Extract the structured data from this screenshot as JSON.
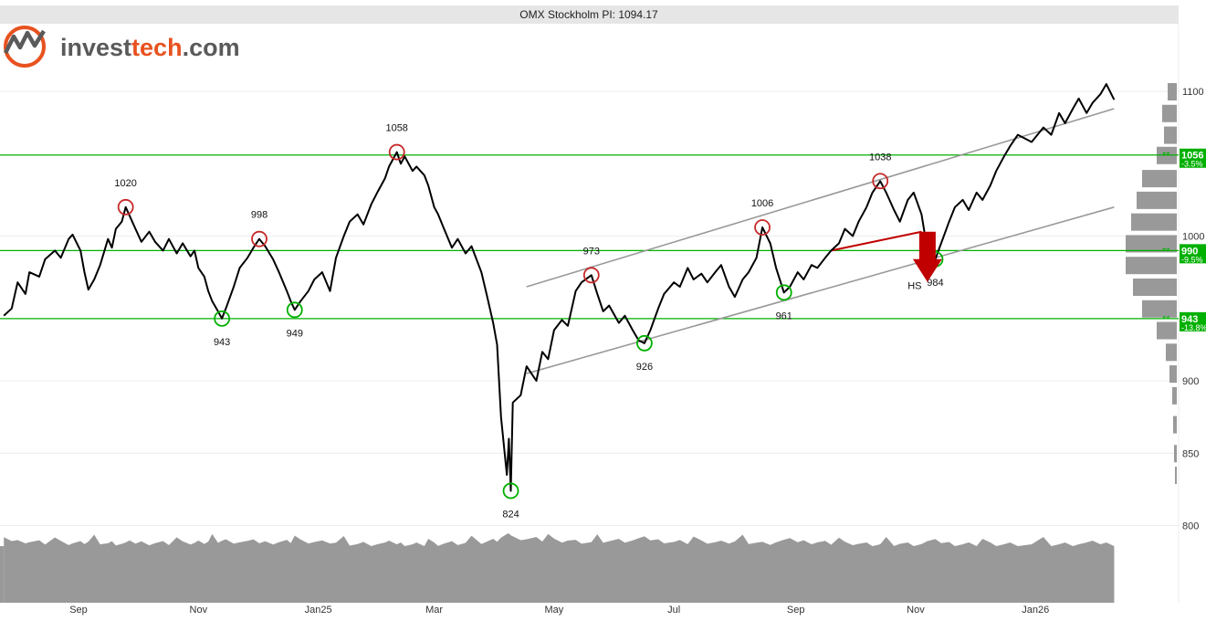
{
  "logo": {
    "part1": "invest",
    "part2": "tech",
    "part3": ".com",
    "colors": {
      "invest": "#5a5a5a",
      "tech": "#e8521f"
    }
  },
  "colors": {
    "price": "#000000",
    "support": "#00b000",
    "resistance_marker": "#c62828",
    "trend_channel": "#999999",
    "volume": "#999999",
    "signal_arrow": "#c00000",
    "level_badge": "#00b000"
  },
  "chart_data": {
    "type": "line",
    "title": "OMX Stockholm PI: 1094.17",
    "y_axis": {
      "min": 762,
      "max": 1146,
      "ticks": [
        800,
        850,
        900,
        1000,
        1100
      ],
      "side": "right"
    },
    "x_axis": {
      "ticks": [
        "Sep",
        "Nov",
        "Jan25",
        "Mar",
        "May",
        "Jul",
        "Sep",
        "Nov",
        "Jan26"
      ],
      "tick_dates": [
        "2024-09-01",
        "2024-11-01",
        "2025-01-01",
        "2025-03-01",
        "2025-05-01",
        "2025-07-01",
        "2025-09-01",
        "2025-11-01",
        "2026-01-01"
      ]
    },
    "series": [
      {
        "points": [
          [
            "2024-07-25",
            945
          ],
          [
            "2024-07-29",
            950
          ],
          [
            "2024-08-01",
            968
          ],
          [
            "2024-08-05",
            960
          ],
          [
            "2024-08-07",
            975
          ],
          [
            "2024-08-12",
            972
          ],
          [
            "2024-08-15",
            984
          ],
          [
            "2024-08-20",
            990
          ],
          [
            "2024-08-23",
            985
          ],
          [
            "2024-08-27",
            998
          ],
          [
            "2024-08-29",
            1001
          ],
          [
            "2024-09-02",
            990
          ],
          [
            "2024-09-04",
            975
          ],
          [
            "2024-09-06",
            963
          ],
          [
            "2024-09-09",
            970
          ],
          [
            "2024-09-12",
            980
          ],
          [
            "2024-09-16",
            998
          ],
          [
            "2024-09-18",
            992
          ],
          [
            "2024-09-20",
            1005
          ],
          [
            "2024-09-23",
            1010
          ],
          [
            "2024-09-25",
            1020
          ],
          [
            "2024-09-27",
            1014
          ],
          [
            "2024-09-30",
            1005
          ],
          [
            "2024-10-03",
            996
          ],
          [
            "2024-10-07",
            1003
          ],
          [
            "2024-10-10",
            996
          ],
          [
            "2024-10-14",
            990
          ],
          [
            "2024-10-17",
            998
          ],
          [
            "2024-10-21",
            988
          ],
          [
            "2024-10-24",
            995
          ],
          [
            "2024-10-28",
            986
          ],
          [
            "2024-10-30",
            990
          ],
          [
            "2024-11-01",
            978
          ],
          [
            "2024-11-04",
            972
          ],
          [
            "2024-11-06",
            962
          ],
          [
            "2024-11-08",
            955
          ],
          [
            "2024-11-11",
            948
          ],
          [
            "2024-11-13",
            943
          ],
          [
            "2024-11-15",
            950
          ],
          [
            "2024-11-19",
            965
          ],
          [
            "2024-11-22",
            978
          ],
          [
            "2024-11-26",
            985
          ],
          [
            "2024-11-29",
            992
          ],
          [
            "2024-12-02",
            998
          ],
          [
            "2024-12-05",
            993
          ],
          [
            "2024-12-09",
            984
          ],
          [
            "2024-12-12",
            975
          ],
          [
            "2024-12-16",
            962
          ],
          [
            "2024-12-18",
            955
          ],
          [
            "2024-12-20",
            949
          ],
          [
            "2024-12-23",
            955
          ],
          [
            "2024-12-27",
            962
          ],
          [
            "2024-12-30",
            970
          ],
          [
            "2025-01-03",
            975
          ],
          [
            "2025-01-07",
            962
          ],
          [
            "2025-01-10",
            985
          ],
          [
            "2025-01-14",
            1000
          ],
          [
            "2025-01-17",
            1010
          ],
          [
            "2025-01-21",
            1015
          ],
          [
            "2025-01-24",
            1008
          ],
          [
            "2025-01-28",
            1022
          ],
          [
            "2025-01-31",
            1030
          ],
          [
            "2025-02-04",
            1040
          ],
          [
            "2025-02-06",
            1048
          ],
          [
            "2025-02-10",
            1058
          ],
          [
            "2025-02-12",
            1050
          ],
          [
            "2025-02-14",
            1055
          ],
          [
            "2025-02-18",
            1045
          ],
          [
            "2025-02-20",
            1048
          ],
          [
            "2025-02-24",
            1042
          ],
          [
            "2025-02-26",
            1035
          ],
          [
            "2025-03-01",
            1020
          ],
          [
            "2025-03-03",
            1015
          ],
          [
            "2025-03-06",
            1005
          ],
          [
            "2025-03-10",
            992
          ],
          [
            "2025-03-13",
            998
          ],
          [
            "2025-03-17",
            988
          ],
          [
            "2025-03-20",
            993
          ],
          [
            "2025-03-25",
            975
          ],
          [
            "2025-03-28",
            958
          ],
          [
            "2025-03-31",
            940
          ],
          [
            "2025-04-02",
            925
          ],
          [
            "2025-04-04",
            875
          ],
          [
            "2025-04-07",
            835
          ],
          [
            "2025-04-08",
            860
          ],
          [
            "2025-04-09",
            824
          ],
          [
            "2025-04-10",
            885
          ],
          [
            "2025-04-14",
            890
          ],
          [
            "2025-04-17",
            910
          ],
          [
            "2025-04-22",
            900
          ],
          [
            "2025-04-25",
            920
          ],
          [
            "2025-04-28",
            915
          ],
          [
            "2025-05-01",
            935
          ],
          [
            "2025-05-05",
            942
          ],
          [
            "2025-05-08",
            938
          ],
          [
            "2025-05-12",
            962
          ],
          [
            "2025-05-15",
            968
          ],
          [
            "2025-05-20",
            973
          ],
          [
            "2025-05-23",
            960
          ],
          [
            "2025-05-26",
            948
          ],
          [
            "2025-05-29",
            952
          ],
          [
            "2025-06-03",
            940
          ],
          [
            "2025-06-06",
            945
          ],
          [
            "2025-06-10",
            935
          ],
          [
            "2025-06-13",
            928
          ],
          [
            "2025-06-16",
            926
          ],
          [
            "2025-06-19",
            935
          ],
          [
            "2025-06-23",
            950
          ],
          [
            "2025-06-26",
            960
          ],
          [
            "2025-07-01",
            968
          ],
          [
            "2025-07-04",
            965
          ],
          [
            "2025-07-08",
            978
          ],
          [
            "2025-07-11",
            970
          ],
          [
            "2025-07-15",
            974
          ],
          [
            "2025-07-18",
            968
          ],
          [
            "2025-07-22",
            975
          ],
          [
            "2025-07-25",
            980
          ],
          [
            "2025-07-29",
            965
          ],
          [
            "2025-08-01",
            958
          ],
          [
            "2025-08-05",
            970
          ],
          [
            "2025-08-08",
            975
          ],
          [
            "2025-08-12",
            985
          ],
          [
            "2025-08-15",
            1006
          ],
          [
            "2025-08-19",
            995
          ],
          [
            "2025-08-22",
            978
          ],
          [
            "2025-08-26",
            961
          ],
          [
            "2025-08-29",
            965
          ],
          [
            "2025-09-02",
            975
          ],
          [
            "2025-09-05",
            970
          ],
          [
            "2025-09-09",
            980
          ],
          [
            "2025-09-12",
            978
          ],
          [
            "2025-09-16",
            985
          ],
          [
            "2025-09-19",
            990
          ],
          [
            "2025-09-23",
            995
          ],
          [
            "2025-09-26",
            1005
          ],
          [
            "2025-09-30",
            1000
          ],
          [
            "2025-10-03",
            1010
          ],
          [
            "2025-10-07",
            1020
          ],
          [
            "2025-10-10",
            1030
          ],
          [
            "2025-10-14",
            1038
          ],
          [
            "2025-10-17",
            1030
          ],
          [
            "2025-10-21",
            1018
          ],
          [
            "2025-10-24",
            1010
          ],
          [
            "2025-10-28",
            1025
          ],
          [
            "2025-10-31",
            1030
          ],
          [
            "2025-11-04",
            1015
          ],
          [
            "2025-11-07",
            990
          ],
          [
            "2025-11-11",
            984
          ],
          [
            "2025-11-14",
            995
          ],
          [
            "2025-11-18",
            1010
          ],
          [
            "2025-11-21",
            1020
          ],
          [
            "2025-11-25",
            1025
          ],
          [
            "2025-11-28",
            1018
          ],
          [
            "2025-12-02",
            1030
          ],
          [
            "2025-12-05",
            1025
          ],
          [
            "2025-12-09",
            1035
          ],
          [
            "2025-12-12",
            1045
          ],
          [
            "2025-12-16",
            1055
          ],
          [
            "2025-12-19",
            1062
          ],
          [
            "2025-12-23",
            1070
          ],
          [
            "2025-12-30",
            1065
          ],
          [
            "2026-01-05",
            1075
          ],
          [
            "2026-01-09",
            1070
          ],
          [
            "2026-01-13",
            1085
          ],
          [
            "2026-01-16",
            1078
          ],
          [
            "2026-01-20",
            1088
          ],
          [
            "2026-01-23",
            1095
          ],
          [
            "2026-01-27",
            1085
          ],
          [
            "2026-01-30",
            1092
          ],
          [
            "2026-02-03",
            1098
          ],
          [
            "2026-02-06",
            1105
          ],
          [
            "2026-02-10",
            1094.17
          ]
        ]
      }
    ],
    "annotations": {
      "peaks": [
        {
          "date": "2024-09-25",
          "value": 1020,
          "label": "1020"
        },
        {
          "date": "2024-12-02",
          "value": 998,
          "label": "998"
        },
        {
          "date": "2025-02-10",
          "value": 1058,
          "label": "1058"
        },
        {
          "date": "2025-05-20",
          "value": 973,
          "label": "973"
        },
        {
          "date": "2025-08-15",
          "value": 1006,
          "label": "1006"
        },
        {
          "date": "2025-10-14",
          "value": 1038,
          "label": "1038"
        }
      ],
      "troughs": [
        {
          "date": "2024-11-13",
          "value": 943,
          "label": "943"
        },
        {
          "date": "2024-12-20",
          "value": 949,
          "label": "949"
        },
        {
          "date": "2025-04-09",
          "value": 824,
          "label": "824"
        },
        {
          "date": "2025-06-16",
          "value": 926,
          "label": "926"
        },
        {
          "date": "2025-08-26",
          "value": 961,
          "label": "961"
        },
        {
          "date": "2025-11-11",
          "value": 984,
          "label": "984"
        }
      ],
      "hs_label": "HS"
    },
    "support_resistance": [
      {
        "value": 1056,
        "label": "1056",
        "pct": "-3.5%",
        "marker": "**"
      },
      {
        "value": 990,
        "label": "990",
        "pct": "-9.5%",
        "marker": "**"
      },
      {
        "value": 943,
        "label": "943",
        "pct": "-13.8%",
        "marker": "**"
      }
    ],
    "trend_channel": {
      "upper": [
        [
          "2025-04-17",
          965
        ],
        [
          "2026-02-10",
          1088
        ]
      ],
      "lower": [
        [
          "2025-04-17",
          905
        ],
        [
          "2026-02-10",
          1020
        ]
      ]
    },
    "neckline": [
      [
        "2025-09-19",
        990
      ],
      [
        "2025-11-04",
        1003
      ]
    ]
  }
}
